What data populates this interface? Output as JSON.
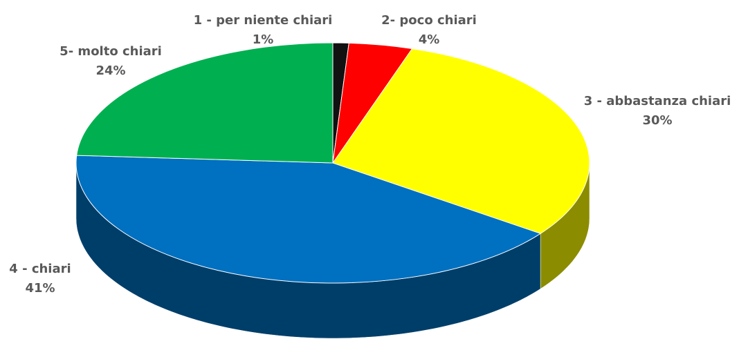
{
  "chart_data": {
    "type": "pie",
    "categories": [
      "1 - per niente chiari",
      "2- poco chiari",
      "3 - abbastanza chiari",
      "4 - chiari",
      "5- molto chiari"
    ],
    "values": [
      1,
      4,
      30,
      41,
      24
    ],
    "value_labels": [
      "1%",
      "4%",
      "30%",
      "41%",
      "24%"
    ],
    "colors": [
      "#111111",
      "#ff0000",
      "#ffff00",
      "#0070c0",
      "#00b050"
    ]
  }
}
